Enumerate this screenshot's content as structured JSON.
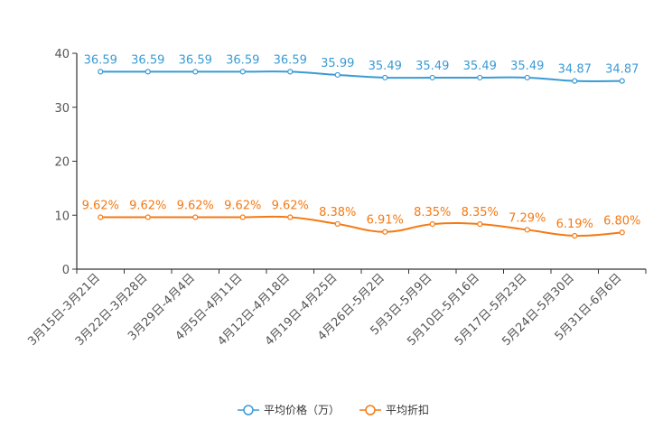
{
  "chart_data": {
    "type": "line",
    "categories": [
      "3月15日-3月21日",
      "3月22日-3月28日",
      "3月29日-4月4日",
      "4月5日-4月11日",
      "4月12日-4月18日",
      "4月19日-4月25日",
      "4月26日-5月2日",
      "5月3日-5月9日",
      "5月10日-5月16日",
      "5月17日-5月23日",
      "5月24日-5月30日",
      "5月31日-6月6日"
    ],
    "ylim": [
      0,
      40
    ],
    "yticks": [
      0,
      10,
      20,
      30,
      40
    ],
    "series": [
      {
        "name": "平均价格（万）",
        "color": "#3a9bd5",
        "values": [
          36.59,
          36.59,
          36.59,
          36.59,
          36.59,
          35.99,
          35.49,
          35.49,
          35.49,
          35.49,
          34.87,
          34.87
        ],
        "labels": [
          "36.59",
          "36.59",
          "36.59",
          "36.59",
          "36.59",
          "35.99",
          "35.49",
          "35.49",
          "35.49",
          "35.49",
          "34.87",
          "34.87"
        ]
      },
      {
        "name": "平均折扣",
        "color": "#f47a14",
        "values": [
          9.62,
          9.62,
          9.62,
          9.62,
          9.62,
          8.38,
          6.91,
          8.35,
          8.35,
          7.29,
          6.19,
          6.8
        ],
        "labels": [
          "9.62%",
          "9.62%",
          "9.62%",
          "9.62%",
          "9.62%",
          "8.38%",
          "6.91%",
          "8.35%",
          "8.35%",
          "7.29%",
          "6.19%",
          "6.80%"
        ]
      }
    ],
    "legend_position": "bottom-center"
  }
}
